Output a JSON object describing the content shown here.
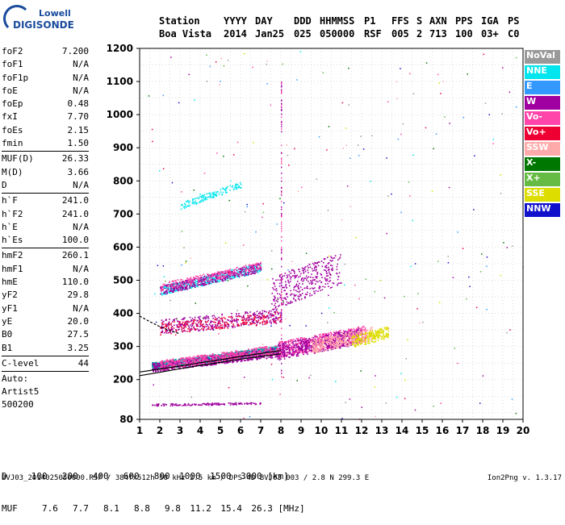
{
  "logo": {
    "line1": "Lowell",
    "line2": "DIGISONDE"
  },
  "header": {
    "row1": [
      "Station",
      "YYYY",
      "DAY",
      "DDD",
      "HHMMSS",
      "P1",
      "FFS",
      "S",
      "AXN",
      "PPS",
      "IGA",
      "PS"
    ],
    "row2": [
      "Boa Vista",
      "2014",
      "Jan25",
      "025",
      "050000",
      "RSF",
      "005",
      "2",
      "713",
      "100",
      "03+",
      "C0"
    ]
  },
  "params": {
    "group1": [
      {
        "label": "foF2",
        "value": "7.200"
      },
      {
        "label": "foF1",
        "value": "N/A"
      },
      {
        "label": "foF1p",
        "value": "N/A"
      },
      {
        "label": "foE",
        "value": "N/A"
      },
      {
        "label": "foEp",
        "value": "0.48"
      },
      {
        "label": "fxI",
        "value": "7.70"
      },
      {
        "label": "foEs",
        "value": "2.15"
      },
      {
        "label": "fmin",
        "value": "1.50"
      }
    ],
    "group2": [
      {
        "label": "MUF(D)",
        "value": "26.33"
      },
      {
        "label": "M(D)",
        "value": "3.66"
      },
      {
        "label": "D",
        "value": "N/A"
      }
    ],
    "group3": [
      {
        "label": "h`F",
        "value": "241.0"
      },
      {
        "label": "h`F2",
        "value": "241.0"
      },
      {
        "label": "h`E",
        "value": "N/A"
      },
      {
        "label": "h`Es",
        "value": "100.0"
      }
    ],
    "group4": [
      {
        "label": "hmF2",
        "value": "260.1"
      },
      {
        "label": "hmF1",
        "value": "N/A"
      },
      {
        "label": "hmE",
        "value": "110.0"
      },
      {
        "label": "yF2",
        "value": "29.8"
      },
      {
        "label": "yF1",
        "value": "N/A"
      },
      {
        "label": "yE",
        "value": "20.0"
      },
      {
        "label": "B0",
        "value": "27.5"
      },
      {
        "label": "B1",
        "value": "3.25"
      }
    ],
    "group5": [
      {
        "label": "C-level",
        "value": "44"
      }
    ],
    "auto": [
      "Auto:",
      "Artist5",
      "500200"
    ]
  },
  "legend": [
    {
      "label": "NoVal",
      "color": "#999999"
    },
    {
      "label": "NNE",
      "color": "#00e5ee"
    },
    {
      "label": "E",
      "color": "#3399ff"
    },
    {
      "label": "W",
      "color": "#a000a0"
    },
    {
      "label": "Vo-",
      "color": "#ff44aa"
    },
    {
      "label": "Vo+",
      "color": "#ee0033"
    },
    {
      "label": "SSW",
      "color": "#ffaaaa"
    },
    {
      "label": "X-",
      "color": "#007700"
    },
    {
      "label": "X+",
      "color": "#66bb44"
    },
    {
      "label": "SSE",
      "color": "#dddd00"
    },
    {
      "label": "NNW",
      "color": "#1111cc"
    }
  ],
  "muf_table": {
    "d_label": "D",
    "d_values": [
      "100",
      "200",
      "400",
      "600",
      "800",
      "1000",
      "1500",
      "3000"
    ],
    "d_unit": "[km]",
    "m_label": "MUF",
    "m_values": [
      "7.6",
      "7.7",
      "8.1",
      "8.8",
      "9.8",
      "11.2",
      "15.4",
      "26.3"
    ],
    "m_unit": "[MHz]"
  },
  "footer": "BVJ03_2014025050000.RSF / 384fx512h 50 kHz 2.5 km / DPS-4D BVJ03 003 / 2.8 N 299.3 E",
  "version": "Ion2Png v. 1.3.17",
  "chart_data": {
    "type": "scatter",
    "xlim": [
      1,
      20
    ],
    "ylim": [
      80,
      1200
    ],
    "x_ticks": [
      1,
      2,
      3,
      4,
      5,
      6,
      7,
      8,
      9,
      10,
      11,
      12,
      13,
      14,
      15,
      16,
      17,
      18,
      19,
      20
    ],
    "y_ticks": [
      80,
      200,
      300,
      400,
      500,
      600,
      700,
      800,
      900,
      1000,
      1100,
      1200
    ],
    "grid": true,
    "legend_placement": "right",
    "traces": [
      {
        "name": "F trace",
        "color": "#00a0a0",
        "x_range": [
          1.6,
          7.8
        ],
        "y_range": [
          242,
          290
        ],
        "spread": 12,
        "n": 900
      },
      {
        "name": "F trace (W)",
        "color": "#a000a0",
        "x_range": [
          1.6,
          8.0
        ],
        "y_range": [
          238,
          285
        ],
        "spread": 14,
        "n": 700
      },
      {
        "name": "F trace (Vo)",
        "color": "#ff44aa",
        "x_range": [
          2.0,
          7.8
        ],
        "y_range": [
          245,
          292
        ],
        "spread": 14,
        "n": 500
      },
      {
        "name": "F extension",
        "color": "#ff44aa",
        "x_range": [
          7.8,
          12.2
        ],
        "y_range": [
          290,
          340
        ],
        "spread": 25,
        "n": 700
      },
      {
        "name": "F extension (W)",
        "color": "#a000a0",
        "x_range": [
          7.8,
          12.0
        ],
        "y_range": [
          285,
          335
        ],
        "spread": 25,
        "n": 500
      },
      {
        "name": "F extension (SSW)",
        "color": "#ffaaaa",
        "x_range": [
          9.5,
          12.5
        ],
        "y_range": [
          300,
          340
        ],
        "spread": 20,
        "n": 300
      },
      {
        "name": "SSE cluster",
        "color": "#dddd00",
        "x_range": [
          11.5,
          13.3
        ],
        "y_range": [
          315,
          345
        ],
        "spread": 18,
        "n": 220
      },
      {
        "name": "2F trace",
        "color": "#00e5ee",
        "x_range": [
          2.0,
          7.0
        ],
        "y_range": [
          470,
          540
        ],
        "spread": 14,
        "n": 500
      },
      {
        "name": "2F trace (W)",
        "color": "#a000a0",
        "x_range": [
          2.0,
          7.0
        ],
        "y_range": [
          470,
          540
        ],
        "spread": 14,
        "n": 400
      },
      {
        "name": "2F (Vo)",
        "color": "#ff44aa",
        "x_range": [
          2.0,
          7.0
        ],
        "y_range": [
          480,
          545
        ],
        "spread": 12,
        "n": 220
      },
      {
        "name": "2F extension",
        "color": "#a000a0",
        "x_range": [
          7.5,
          11.0
        ],
        "y_range": [
          460,
          540
        ],
        "spread": 50,
        "n": 350
      },
      {
        "name": "3F trace",
        "color": "#00e5ee",
        "x_range": [
          3.0,
          6.0
        ],
        "y_range": [
          725,
          790
        ],
        "spread": 10,
        "n": 140
      },
      {
        "name": "Es trace",
        "color": "#a000a0",
        "x_range": [
          1.6,
          7.0
        ],
        "y_range": [
          125,
          130
        ],
        "spread": 3,
        "n": 150
      },
      {
        "name": "mid layer",
        "color": "#a000a0",
        "x_range": [
          2.0,
          8.0
        ],
        "y_range": [
          360,
          395
        ],
        "spread": 22,
        "n": 400
      },
      {
        "name": "mid layer (Vo+)",
        "color": "#ee0033",
        "x_range": [
          2.0,
          8.0
        ],
        "y_range": [
          355,
          390
        ],
        "spread": 18,
        "n": 200
      }
    ],
    "fitted_curves": [
      {
        "x": [
          1,
          2,
          3,
          4,
          5,
          6,
          7,
          8
        ],
        "y": [
          212,
          222,
          233,
          243,
          252,
          262,
          270,
          278
        ]
      },
      {
        "x": [
          1,
          2,
          3,
          4,
          5,
          6,
          7,
          8
        ],
        "y": [
          223,
          232,
          241,
          251,
          260,
          270,
          279,
          288
        ]
      },
      {
        "x": [
          1,
          1.5,
          2,
          2.5,
          3
        ],
        "y": [
          392,
          375,
          360,
          348,
          338
        ]
      }
    ]
  }
}
